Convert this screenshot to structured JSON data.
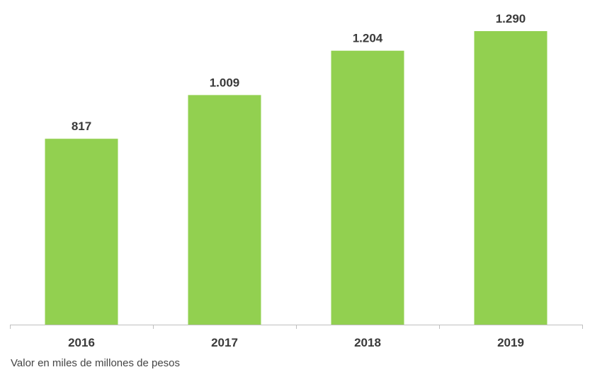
{
  "chart_data": {
    "type": "bar",
    "categories": [
      "2016",
      "2017",
      "2018",
      "2019"
    ],
    "values": [
      817,
      1009,
      1204,
      1290
    ],
    "value_labels": [
      "817",
      "1.009",
      "1.204",
      "1.290"
    ],
    "title": "",
    "xlabel": "",
    "ylabel": "",
    "ylim": [
      0,
      1290
    ],
    "grid": false,
    "legend": "none",
    "bar_color": "#92d050",
    "axis_color": "#bfbfbf",
    "label_color": "#3a3a3a"
  },
  "footnote": "Valor en miles de millones de pesos"
}
